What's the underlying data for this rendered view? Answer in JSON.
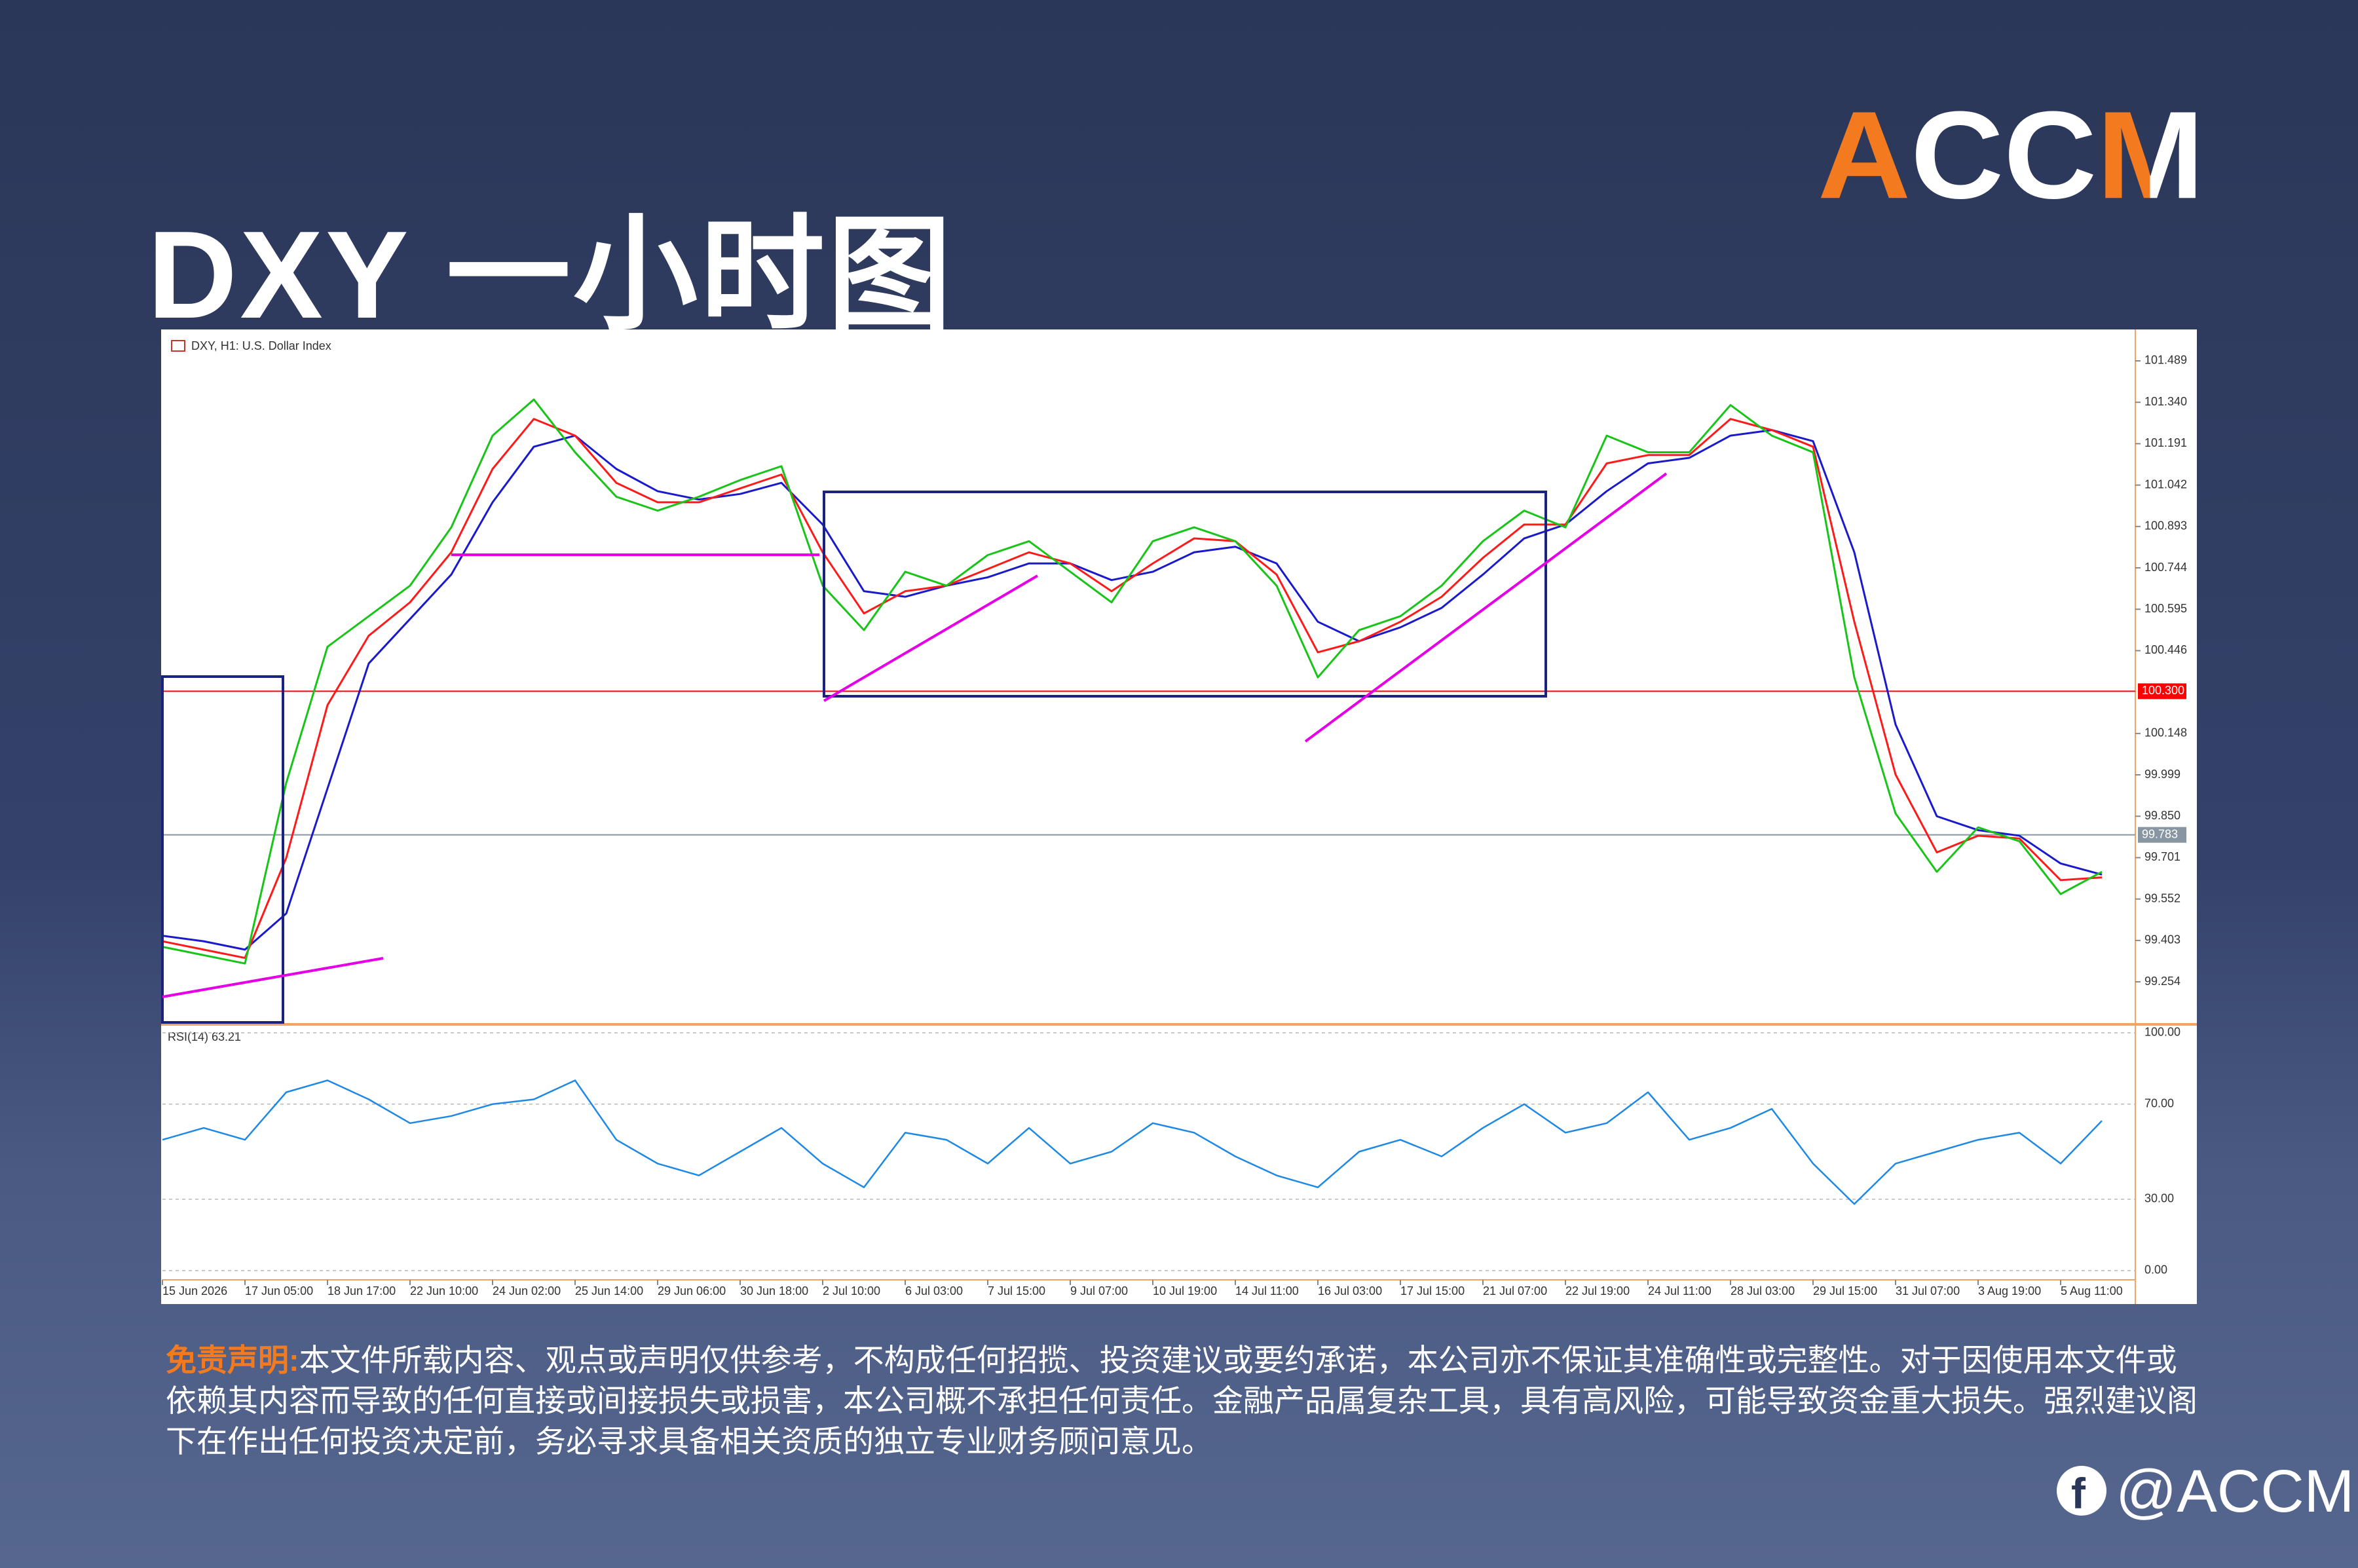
{
  "header": {
    "title": "DXY 一小时图",
    "logo": "ACCM"
  },
  "chart_data": {
    "type": "line",
    "title": "DXY, H1: U.S. Dollar Index",
    "categories": [
      "15 Jun 2026",
      null,
      "17 Jun 05:00",
      null,
      "18 Jun 17:00",
      null,
      "22 Jun 10:00",
      null,
      "24 Jun 02:00",
      null,
      "25 Jun 14:00",
      null,
      "29 Jun 06:00",
      null,
      "30 Jun 18:00",
      null,
      "2 Jul 10:00",
      null,
      "6 Jul 03:00",
      null,
      "7 Jul 15:00",
      null,
      "9 Jul 07:00",
      null,
      "10 Jul 19:00",
      null,
      "14 Jul 11:00",
      null,
      "16 Jul 03:00",
      null,
      "17 Jul 15:00",
      null,
      "21 Jul 07:00",
      null,
      "22 Jul 19:00",
      null,
      "24 Jul 11:00",
      null,
      "28 Jul 03:00",
      null,
      "29 Jul 15:00",
      null,
      "31 Jul 07:00",
      null,
      "3 Aug 19:00",
      null,
      "5 Aug 11:00",
      null
    ],
    "series": [
      {
        "color": "#18c418",
        "values": [
          99.38,
          99.35,
          99.32,
          99.97,
          100.46,
          100.57,
          100.68,
          100.89,
          101.22,
          101.35,
          101.16,
          101.0,
          100.95,
          101.0,
          101.06,
          101.11,
          100.68,
          100.52,
          100.73,
          100.68,
          100.79,
          100.84,
          100.73,
          100.62,
          100.84,
          100.89,
          100.84,
          100.68,
          100.35,
          100.52,
          100.57,
          100.68,
          100.84,
          100.95,
          100.89,
          101.22,
          101.16,
          101.16,
          101.33,
          101.22,
          101.16,
          100.35,
          99.86,
          99.65,
          99.81,
          99.76,
          99.57,
          99.65
        ]
      },
      {
        "color": "#ff1a1a",
        "values": [
          99.4,
          99.37,
          99.34,
          99.7,
          100.25,
          100.5,
          100.62,
          100.8,
          101.1,
          101.28,
          101.22,
          101.05,
          100.98,
          100.98,
          101.03,
          101.08,
          100.8,
          100.58,
          100.66,
          100.68,
          100.74,
          100.8,
          100.76,
          100.66,
          100.76,
          100.85,
          100.84,
          100.72,
          100.44,
          100.48,
          100.55,
          100.64,
          100.78,
          100.9,
          100.9,
          101.12,
          101.15,
          101.15,
          101.28,
          101.24,
          101.18,
          100.55,
          100.0,
          99.72,
          99.78,
          99.77,
          99.62,
          99.63
        ]
      },
      {
        "color": "#1a1acc",
        "values": [
          99.42,
          99.4,
          99.37,
          99.5,
          99.95,
          100.4,
          100.56,
          100.72,
          100.98,
          101.18,
          101.22,
          101.1,
          101.02,
          100.99,
          101.01,
          101.05,
          100.9,
          100.66,
          100.64,
          100.68,
          100.71,
          100.76,
          100.76,
          100.7,
          100.73,
          100.8,
          100.82,
          100.76,
          100.55,
          100.48,
          100.53,
          100.6,
          100.72,
          100.85,
          100.9,
          101.02,
          101.12,
          101.14,
          101.22,
          101.24,
          101.2,
          100.8,
          100.18,
          99.85,
          99.8,
          99.78,
          99.68,
          99.64
        ]
      }
    ],
    "ylim": [
      99.108,
      101.555
    ],
    "yticks": [
      101.489,
      {
        "value": 101.34,
        "label": "101.340"
      },
      101.191,
      101.042,
      100.893,
      100.744,
      100.595,
      100.446,
      100.148,
      99.999,
      {
        "value": 99.85,
        "label": "99.850"
      },
      99.701,
      99.552,
      99.403,
      99.254
    ],
    "markers": [
      {
        "value": 100.3,
        "label": "100.300",
        "color": "#ff0000"
      },
      {
        "value": 99.783,
        "label": "99.783",
        "color": "#8896a4"
      }
    ],
    "rsi": {
      "title": "RSI(14) 63.21",
      "color": "#1e88e5",
      "values": [
        55,
        60,
        55,
        75,
        80,
        72,
        62,
        65,
        70,
        72,
        80,
        55,
        45,
        40,
        50,
        60,
        45,
        35,
        58,
        55,
        45,
        60,
        45,
        50,
        62,
        58,
        48,
        40,
        35,
        50,
        55,
        48,
        60,
        70,
        58,
        62,
        75,
        55,
        60,
        68,
        45,
        28,
        45,
        50,
        55,
        58,
        45,
        63
      ],
      "ylim": [
        -2.8,
        101.9
      ],
      "yticks": [
        {
          "value": 100,
          "label": "100.00"
        },
        {
          "value": 70,
          "label": "70.00"
        },
        {
          "value": 30,
          "label": "30.00"
        },
        {
          "value": 0,
          "label": "0.00"
        }
      ]
    }
  },
  "footer": {
    "disclaimer_label": "免责声明:",
    "disclaimer": "本文件所载内容、观点或声明仅供参考，不构成任何招揽、投资建议或要约承诺，本公司亦不保证其准确性或完整性。对于因使用本文件或依赖其内容而导致的任何直接或间接损失或损害，本公司概不承担任何责任。金融产品属复杂工具，具有高风险，可能导致资金重大损失。强烈建议阁下在作出任何投资决定前，务必寻求具备相关资质的独立专业财务顾问意见。",
    "handle": "@ACCM"
  }
}
